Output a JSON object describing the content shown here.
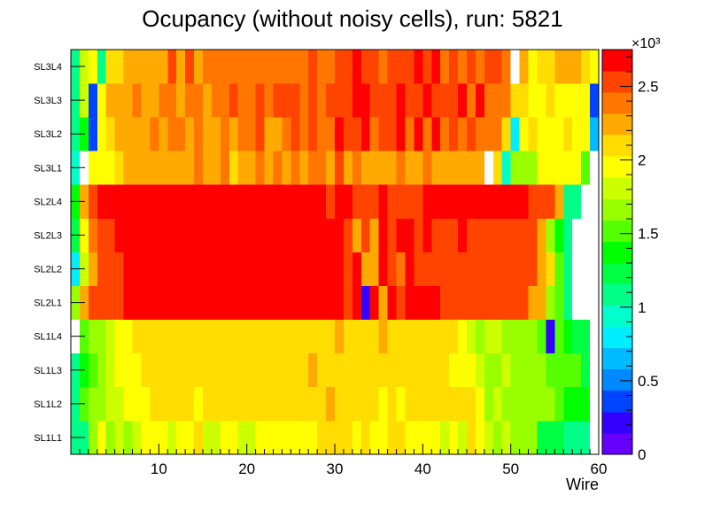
{
  "chart_data": {
    "type": "heatmap",
    "title": "Ocupancy (without noisy cells), run: 5821",
    "xlabel": "Wire",
    "ylabel": "",
    "xlim": [
      0,
      60
    ],
    "x_ticks": [
      "10",
      "20",
      "30",
      "40",
      "50",
      "60"
    ],
    "y_categories": [
      "SL1L1",
      "SL1L2",
      "SL1L3",
      "SL1L4",
      "SL2L1",
      "SL2L2",
      "SL2L3",
      "SL2L4",
      "SL3L1",
      "SL3L2",
      "SL3L3",
      "SL3L4"
    ],
    "zlim": [
      0,
      2750
    ],
    "colorbar_ticks": [
      "0",
      "0.5",
      "1",
      "1.5",
      "2",
      "2.5"
    ],
    "colorbar_exponent": "×10³",
    "palette": [
      "#6600ff",
      "#3300ff",
      "#0044ff",
      "#0088ff",
      "#00bbff",
      "#00eeff",
      "#00ffcc",
      "#00ff88",
      "#00ff44",
      "#00ff00",
      "#55ff00",
      "#99ff00",
      "#ccff00",
      "#ffff00",
      "#ffdd00",
      "#ffaa00",
      "#ff7700",
      "#ff4400",
      "#ff0000"
    ],
    "series": [
      {
        "name": "SL1L1",
        "values": [
          1050,
          1050,
          1700,
          1900,
          1700,
          1800,
          1700,
          1800,
          1900,
          1900,
          1900,
          1850,
          1900,
          1900,
          2100,
          1850,
          1800,
          1950,
          1950,
          1850,
          1850,
          1950,
          1950,
          1950,
          1950,
          1950,
          1950,
          2000,
          2100,
          2100,
          2100,
          2150,
          2000,
          2100,
          2000,
          1900,
          2100,
          2100,
          1900,
          1900,
          2000,
          1900,
          1850,
          1900,
          1850,
          2100,
          1900,
          1800,
          1700,
          1750,
          1700,
          1700,
          1700,
          1200,
          1200,
          1200,
          1150,
          1150,
          1150,
          0
        ]
      },
      {
        "name": "SL1L2",
        "values": [
          1050,
          1500,
          1650,
          1700,
          1750,
          1850,
          2000,
          2000,
          2000,
          2100,
          2150,
          2100,
          2100,
          2100,
          2000,
          2150,
          2100,
          2050,
          2100,
          2100,
          2050,
          2050,
          2100,
          2100,
          2050,
          2050,
          2100,
          2100,
          2150,
          2200,
          2100,
          2100,
          2050,
          2150,
          2050,
          2000,
          2150,
          2000,
          2100,
          2100,
          2050,
          2050,
          2050,
          2050,
          2050,
          2100,
          2000,
          1700,
          1800,
          1700,
          1650,
          1700,
          1700,
          1650,
          1600,
          1500,
          1350,
          1350,
          1350,
          0
        ]
      },
      {
        "name": "SL1L3",
        "values": [
          1050,
          1350,
          1500,
          1700,
          1800,
          1900,
          1950,
          2000,
          2100,
          2100,
          2150,
          2150,
          2150,
          2150,
          2150,
          2100,
          2050,
          2050,
          2050,
          2100,
          2100,
          2050,
          2150,
          2150,
          2100,
          2100,
          2150,
          2200,
          2150,
          2150,
          2100,
          2150,
          2100,
          2050,
          2050,
          2100,
          2150,
          2150,
          2050,
          2100,
          2050,
          2050,
          2050,
          2000,
          2000,
          2000,
          1750,
          1700,
          1700,
          1750,
          1700,
          1700,
          1650,
          1700,
          1500,
          1500,
          1500,
          1500,
          1250,
          0
        ]
      },
      {
        "name": "SL1L4",
        "values": [
          0,
          1500,
          1600,
          1700,
          1850,
          1950,
          1950,
          2100,
          2100,
          2100,
          2050,
          2100,
          2100,
          2100,
          2150,
          2050,
          2100,
          2100,
          2150,
          2100,
          2100,
          2100,
          2050,
          2150,
          2100,
          2150,
          2100,
          2150,
          2150,
          2150,
          2200,
          2100,
          2100,
          2150,
          2050,
          2200,
          2150,
          2100,
          2100,
          2150,
          2050,
          2050,
          2050,
          2100,
          2000,
          1750,
          1700,
          1750,
          1750,
          1700,
          1700,
          1600,
          1600,
          1500,
          200,
          1500,
          1400,
          1300,
          1300,
          0
        ]
      },
      {
        "name": "SL2L1",
        "values": [
          1650,
          2300,
          2600,
          2600,
          2600,
          2600,
          2750,
          2750,
          2700,
          2700,
          2700,
          2650,
          2650,
          2750,
          2650,
          2650,
          2750,
          2650,
          2650,
          2700,
          2650,
          2700,
          2650,
          2750,
          2650,
          2650,
          2700,
          2750,
          2650,
          2650,
          2650,
          2600,
          2650,
          150,
          2650,
          2200,
          2650,
          2600,
          2650,
          2650,
          2650,
          2650,
          2600,
          2600,
          2600,
          2500,
          2500,
          2500,
          2600,
          2500,
          2500,
          2500,
          2250,
          2250,
          1700,
          1500,
          1100,
          0,
          0,
          0
        ]
      },
      {
        "name": "SL2L2",
        "values": [
          800,
          1800,
          2300,
          2600,
          2600,
          2600,
          2650,
          2650,
          2700,
          2750,
          2700,
          2750,
          2700,
          2650,
          2650,
          2650,
          2650,
          2650,
          2750,
          2650,
          2650,
          2650,
          2650,
          2650,
          2650,
          2650,
          2650,
          2650,
          2650,
          2650,
          2650,
          2600,
          2650,
          2300,
          2300,
          2650,
          2600,
          2400,
          2650,
          2500,
          2600,
          2500,
          2500,
          2500,
          2500,
          2600,
          2550,
          2550,
          2550,
          2550,
          2500,
          2500,
          2500,
          2300,
          2100,
          1500,
          1100,
          0,
          0,
          0
        ]
      },
      {
        "name": "SL2L3",
        "values": [
          1300,
          2000,
          2350,
          2600,
          2600,
          2650,
          2650,
          2650,
          2650,
          2650,
          2650,
          2650,
          2650,
          2650,
          2650,
          2650,
          2650,
          2650,
          2650,
          2650,
          2650,
          2650,
          2700,
          2650,
          2650,
          2650,
          2650,
          2700,
          2650,
          2650,
          2650,
          2600,
          2300,
          2600,
          2200,
          2650,
          2600,
          2650,
          2650,
          2600,
          2650,
          2600,
          2600,
          2600,
          2650,
          2600,
          2600,
          2600,
          2600,
          2600,
          2600,
          2600,
          2500,
          2200,
          1600,
          1400,
          1100,
          0,
          0,
          0
        ]
      },
      {
        "name": "SL2L4",
        "values": [
          1400,
          2300,
          2500,
          2650,
          2650,
          2650,
          2650,
          2650,
          2700,
          2650,
          2700,
          2700,
          2650,
          2650,
          2650,
          2650,
          2650,
          2650,
          2650,
          2650,
          2650,
          2650,
          2700,
          2650,
          2650,
          2650,
          2650,
          2650,
          2650,
          2600,
          2650,
          2650,
          2600,
          2600,
          2600,
          2650,
          2600,
          2600,
          2600,
          2600,
          2650,
          2650,
          2650,
          2650,
          2650,
          2650,
          2650,
          2650,
          2650,
          2650,
          2650,
          2650,
          2600,
          2500,
          2500,
          2300,
          1100,
          1100,
          0,
          0
        ]
      },
      {
        "name": "SL3L1",
        "values": [
          1000,
          0,
          1950,
          1900,
          2000,
          2150,
          2200,
          2200,
          2300,
          2200,
          2200,
          2300,
          2250,
          2200,
          2400,
          2200,
          2300,
          2400,
          2100,
          2300,
          2300,
          2400,
          2250,
          2350,
          2250,
          2400,
          2300,
          2400,
          2350,
          2250,
          2600,
          2300,
          2400,
          2300,
          2300,
          2300,
          2300,
          2450,
          2200,
          2300,
          2400,
          2300,
          2300,
          2200,
          2300,
          2200,
          2200,
          0,
          2100,
          1000,
          1650,
          1700,
          1700,
          2000,
          2000,
          2000,
          2000,
          2000,
          1500,
          0
        ]
      },
      {
        "name": "SL3L2",
        "values": [
          1050,
          1400,
          400,
          2000,
          2100,
          2300,
          2200,
          2300,
          2300,
          2400,
          2300,
          2400,
          2400,
          2200,
          2450,
          2300,
          2300,
          2400,
          2300,
          2400,
          2400,
          2500,
          2300,
          2300,
          2400,
          2500,
          2350,
          2500,
          2450,
          2400,
          2650,
          2600,
          2500,
          2700,
          2400,
          2500,
          2600,
          2650,
          2450,
          2650,
          2450,
          2650,
          2400,
          2550,
          2450,
          2550,
          2400,
          2350,
          2350,
          2100,
          800,
          1900,
          2050,
          2000,
          2000,
          1950,
          2100,
          1900,
          1900,
          600
        ]
      },
      {
        "name": "SL3L3",
        "values": [
          1100,
          1800,
          300,
          2000,
          2200,
          2200,
          2200,
          2450,
          2300,
          2300,
          2400,
          2450,
          2300,
          2400,
          2400,
          2300,
          2400,
          2400,
          2500,
          2450,
          2450,
          2500,
          2450,
          2600,
          2500,
          2500,
          2450,
          2550,
          2450,
          2500,
          2550,
          2550,
          2650,
          2650,
          2600,
          2600,
          2500,
          2700,
          2550,
          2550,
          2650,
          2550,
          2550,
          2500,
          2650,
          2450,
          2750,
          2450,
          2400,
          2400,
          2100,
          2100,
          1950,
          1950,
          2100,
          2000,
          1900,
          1950,
          2000,
          300
        ]
      },
      {
        "name": "SL3L4",
        "values": [
          1050,
          1800,
          2000,
          1100,
          2100,
          2100,
          2200,
          2200,
          2200,
          2200,
          2300,
          2500,
          2200,
          2500,
          2300,
          2400,
          2400,
          2400,
          2400,
          2350,
          2450,
          2450,
          2350,
          2400,
          2400,
          2450,
          2400,
          2500,
          2450,
          2450,
          2500,
          2600,
          2650,
          2500,
          2500,
          2450,
          2550,
          2500,
          2550,
          2650,
          2550,
          2650,
          2450,
          2550,
          2450,
          2500,
          2450,
          2600,
          2500,
          2400,
          0,
          2300,
          2000,
          2100,
          2100,
          2200,
          2200,
          2200,
          2150,
          1900
        ]
      }
    ]
  }
}
